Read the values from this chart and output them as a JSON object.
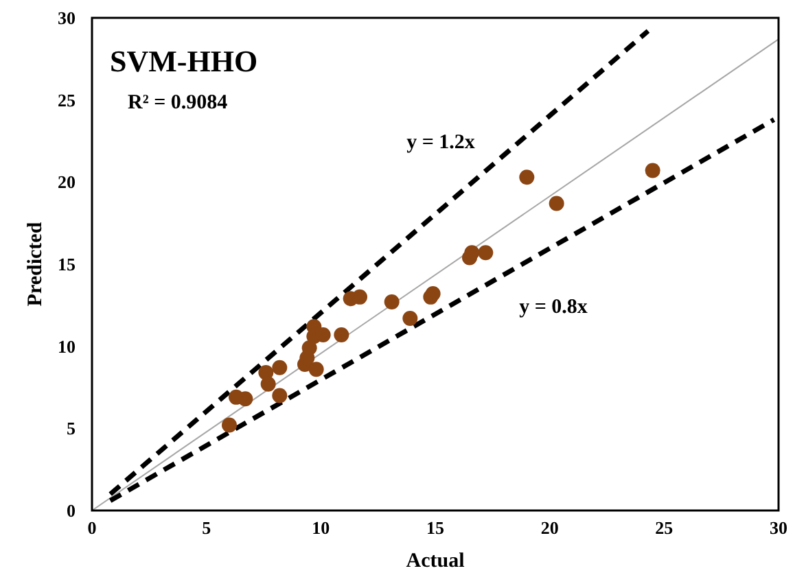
{
  "chart_data": {
    "type": "scatter",
    "title": "SVM-HHO",
    "xlabel": "Actual",
    "ylabel": "Predicted",
    "xlim": [
      0,
      30
    ],
    "ylim": [
      0,
      30
    ],
    "xticks": [
      0,
      5,
      10,
      15,
      20,
      25,
      30
    ],
    "yticks": [
      0,
      5,
      10,
      15,
      20,
      25,
      30
    ],
    "grid": false,
    "marker": "circle",
    "series": [
      {
        "color": "#8b4513",
        "x": [
          6,
          6.3,
          6.7,
          7.6,
          7.7,
          8.2,
          8.2,
          9.3,
          9.4,
          9.5,
          9.8,
          9.7,
          9.7,
          10.1,
          10.9,
          11.3,
          11.7,
          13.1,
          13.9,
          14.8,
          14.9,
          16.5,
          16.6,
          17.2,
          19,
          20.3,
          24.5
        ],
        "values": [
          5.2,
          6.9,
          6.8,
          8.4,
          7.7,
          8.7,
          7,
          8.9,
          9.3,
          9.9,
          8.6,
          10.6,
          11.2,
          10.7,
          10.7,
          12.9,
          13,
          12.7,
          11.7,
          13,
          13.2,
          15.4,
          15.7,
          15.7,
          20.3,
          18.7,
          20.7
        ]
      },
      {
        "type": "line",
        "color": "#a6a6a6",
        "line_style": "solid",
        "marker": "none",
        "x": [
          0,
          30
        ],
        "values": [
          0,
          28.7
        ]
      },
      {
        "type": "line",
        "color": "#000000",
        "line_style": "dashed",
        "marker": "none",
        "x": [
          0.8,
          24.3
        ],
        "values": [
          1,
          29.2
        ]
      },
      {
        "type": "line",
        "color": "#000000",
        "line_style": "dashed",
        "marker": "none",
        "x": [
          0.8,
          29.8
        ],
        "values": [
          0.6,
          23.8
        ]
      }
    ],
    "annotations": [
      "R² = 0.9084",
      "y = 1.2x",
      "y = 0.8x"
    ]
  }
}
